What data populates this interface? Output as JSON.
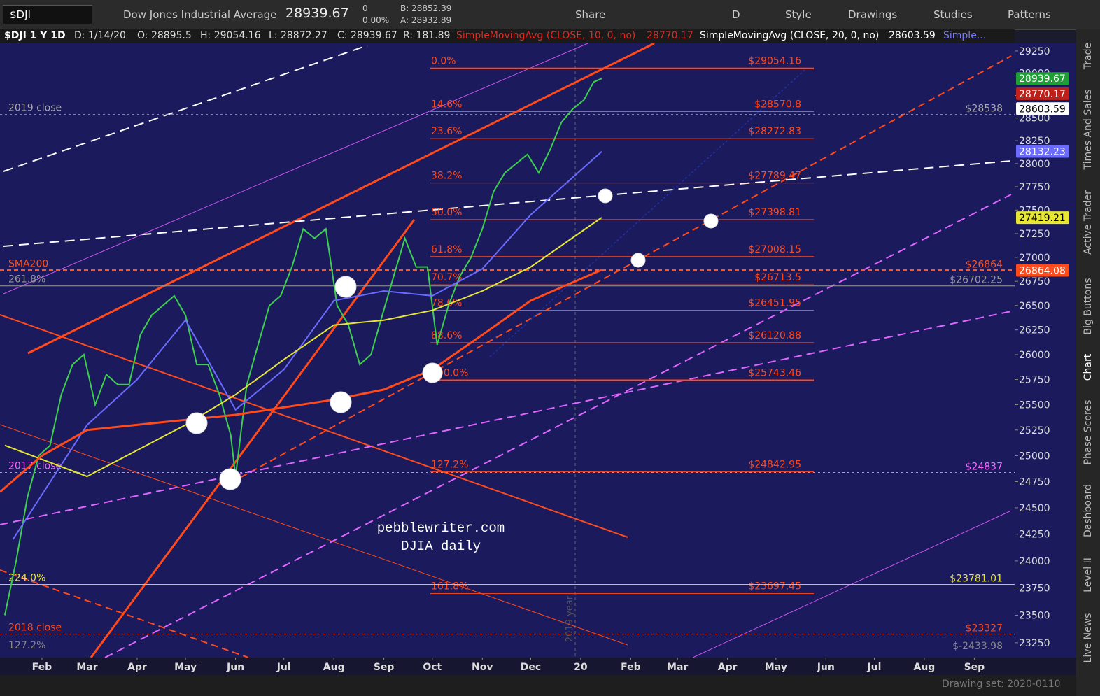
{
  "toolbar": {
    "symbol": "$DJI",
    "description": "Dow Jones Industrial Average",
    "last": "28939.67",
    "change": "0",
    "change_pct": "0.00%",
    "bid": "B: 28852.39",
    "ask": "A: 28932.89",
    "buttons": [
      "Share",
      "D",
      "Style",
      "Drawings",
      "Studies",
      "Patterns"
    ]
  },
  "info_bar": {
    "symbol": "$DJI 1 Y 1D",
    "date": "D: 1/14/20",
    "open": "O: 28895.5",
    "high": "H: 29054.16",
    "low": "L: 28872.27",
    "close": "C: 28939.67",
    "range": "R: 181.89",
    "study1": "SimpleMovingAvg (CLOSE, 10, 0, no)",
    "study1_value": "28770.17",
    "study2": "SimpleMovingAvg (CLOSE, 20, 0, no)",
    "study2_value": "28603.59",
    "study3": "Simple..."
  },
  "sidebar": [
    "Trade",
    "Times And Sales",
    "Active Trader",
    "Big Buttons",
    "Chart",
    "Phase Scores",
    "Dashboard",
    "Level II",
    "Live News"
  ],
  "footer": {
    "drawing_set": "Drawing set: 2020-0110"
  },
  "chart_data": {
    "type": "line",
    "log_scale": true,
    "xlim": [
      5,
      634
    ],
    "xticks": [
      {
        "value": 31,
        "label": "Feb"
      },
      {
        "value": 59,
        "label": "Mar"
      },
      {
        "value": 90,
        "label": "Apr"
      },
      {
        "value": 120,
        "label": "May"
      },
      {
        "value": 151,
        "label": "Jun"
      },
      {
        "value": 181,
        "label": "Jul"
      },
      {
        "value": 212,
        "label": "Aug"
      },
      {
        "value": 243,
        "label": "Sep"
      },
      {
        "value": 273,
        "label": "Oct"
      },
      {
        "value": 304,
        "label": "Nov"
      },
      {
        "value": 334,
        "label": "Dec"
      },
      {
        "value": 365,
        "label": "20"
      },
      {
        "value": 396,
        "label": "Feb"
      },
      {
        "value": 425,
        "label": "Mar"
      },
      {
        "value": 456,
        "label": "Apr"
      },
      {
        "value": 486,
        "label": "May"
      },
      {
        "value": 517,
        "label": "Jun"
      },
      {
        "value": 547,
        "label": "Jul"
      },
      {
        "value": 578,
        "label": "Aug"
      },
      {
        "value": 609,
        "label": "Sep"
      }
    ],
    "ylim": [
      23117,
      29337
    ],
    "yticks": [
      23250,
      23500,
      23750,
      24000,
      24250,
      24500,
      24750,
      25000,
      25250,
      25500,
      25750,
      26000,
      26250,
      26500,
      26750,
      27000,
      27250,
      27500,
      27750,
      28000,
      28250,
      28500,
      28750,
      29000,
      29250
    ],
    "series": [
      {
        "color": "#3ccf4e",
        "x": [
          8,
          15,
          22,
          29,
          36,
          43,
          50,
          57,
          64,
          71,
          78,
          85,
          92,
          99,
          106,
          113,
          120,
          127,
          134,
          141,
          148,
          151,
          158,
          165,
          172,
          179,
          186,
          193,
          200,
          207,
          214,
          221,
          228,
          235,
          242,
          249,
          256,
          263,
          270,
          276,
          283,
          290,
          297,
          304,
          311,
          318,
          325,
          332,
          339,
          346,
          353,
          360,
          367,
          373,
          378
        ],
        "values": [
          23500,
          24000,
          24600,
          25000,
          25100,
          25600,
          25900,
          26000,
          25500,
          25800,
          25700,
          25700,
          26200,
          26400,
          26500,
          26600,
          26400,
          25900,
          25900,
          25600,
          25200,
          24800,
          25700,
          26100,
          26500,
          26600,
          26900,
          27300,
          27200,
          27300,
          26500,
          26300,
          25900,
          26000,
          26400,
          26800,
          27200,
          26900,
          26900,
          26100,
          26500,
          26800,
          27000,
          27300,
          27700,
          27900,
          28000,
          28100,
          27900,
          28150,
          28450,
          28600,
          28700,
          28900,
          28940
        ]
      },
      {
        "color": "#6b6bff",
        "x": [
          13,
          59,
          90,
          120,
          151,
          181,
          212,
          243,
          273,
          304,
          334,
          378
        ],
        "values": [
          24200,
          25300,
          25750,
          26350,
          25450,
          25850,
          26550,
          26650,
          26600,
          26880,
          27450,
          28130
        ]
      },
      {
        "color": "#e6e633",
        "x": [
          8,
          59,
          120,
          151,
          181,
          212,
          243,
          273,
          304,
          334,
          378
        ],
        "values": [
          25100,
          24800,
          25300,
          25600,
          25950,
          26300,
          26350,
          26450,
          26650,
          26900,
          27420
        ]
      },
      {
        "color": "#ff4a1c",
        "x": [
          5,
          31,
          59,
          120,
          151,
          212,
          243,
          273,
          304,
          334,
          378
        ],
        "values": [
          24650,
          25000,
          25250,
          25350,
          25400,
          25550,
          25650,
          25850,
          26200,
          26550,
          26870
        ]
      }
    ],
    "fib_levels": [
      {
        "label": "0.0%",
        "value": 29054.16,
        "value_label": "$29054.16"
      },
      {
        "label": "14.6%",
        "value": 28570.8,
        "value_label": "$28570.8"
      },
      {
        "label": "23.6%",
        "value": 28272.83,
        "value_label": "$28272.83"
      },
      {
        "label": "38.2%",
        "value": 27789.47,
        "value_label": "$27789.47"
      },
      {
        "label": "50.0%",
        "value": 27398.81,
        "value_label": "$27398.81"
      },
      {
        "label": "61.8%",
        "value": 27008.15,
        "value_label": "$27008.15"
      },
      {
        "label": "70.7%",
        "value": 26713.5,
        "value_label": "$26713.5"
      },
      {
        "label": "78.6%",
        "value": 26451.95,
        "value_label": "$26451.95"
      },
      {
        "label": "88.6%",
        "value": 26120.88,
        "value_label": "$26120.88"
      },
      {
        "label": "100.0%",
        "value": 25743.46,
        "value_label": "$25743.46"
      },
      {
        "label": "127.2%",
        "value": 24842.95,
        "value_label": "$24842.95"
      },
      {
        "label": "161.8%",
        "value": 23697.45,
        "value_label": "$23697.45"
      }
    ],
    "levels": [
      {
        "label": "2019 close",
        "value": 28538,
        "value_label": "$28538",
        "color": "#aaaaaa"
      },
      {
        "label": "SMA200",
        "value": 26864,
        "value_label": "$26864",
        "color": "#ff5522"
      },
      {
        "label": "261.8%",
        "value": 26702.25,
        "value_label": "$26702.25",
        "color": "#999999"
      },
      {
        "label": "2017 close",
        "value": 24837,
        "value_label": "$24837",
        "color": "#ff66ff"
      },
      {
        "label": "224.0%",
        "value": 23781.01,
        "value_label": "$23781.01",
        "color": "#e6e633"
      },
      {
        "label": "2018 close",
        "value": 23327,
        "value_label": "$23327",
        "color": "#ff4a1c"
      },
      {
        "label": "127.2%",
        "value": -2433.98,
        "value_label": "$-2433.98",
        "color": "#888888"
      }
    ],
    "price_badges": [
      {
        "value": 28939.67,
        "color": "#1f9e36"
      },
      {
        "value": 28770.17,
        "color": "#c0201a"
      },
      {
        "value": 28603.59,
        "color": "#ffffff"
      },
      {
        "value": 28132.23,
        "color": "#6b6bff"
      },
      {
        "value": 27419.21,
        "color": "#e6e633"
      },
      {
        "value": 26864.08,
        "color": "#ff4a1c"
      }
    ],
    "watermark": [
      "pebblewriter.com",
      "DJIA daily"
    ],
    "year_marker": "2019 year"
  }
}
